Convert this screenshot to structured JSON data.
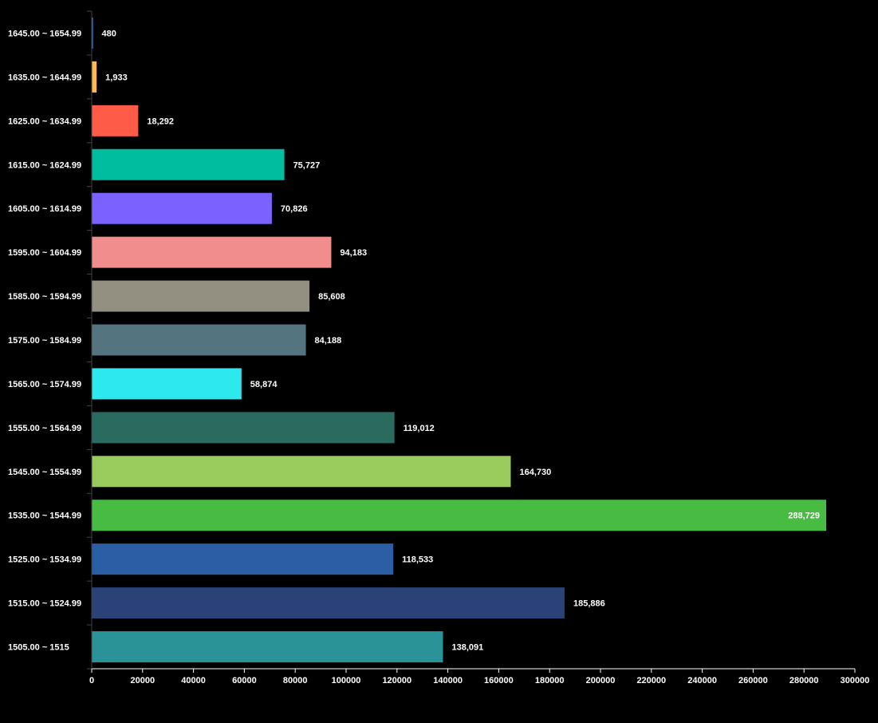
{
  "chart_data": {
    "type": "bar",
    "orientation": "horizontal",
    "title": "",
    "xlabel": "",
    "ylabel": "",
    "xlim": [
      0,
      300000
    ],
    "x_ticks": [
      0,
      20000,
      40000,
      60000,
      80000,
      100000,
      120000,
      140000,
      160000,
      180000,
      200000,
      220000,
      240000,
      260000,
      280000,
      300000
    ],
    "x_tick_labels": [
      "0",
      "20000",
      "40000",
      "60000",
      "80000",
      "100000",
      "120000",
      "140000",
      "160000",
      "180000",
      "200000",
      "220000",
      "240000",
      "260000",
      "280000",
      "300000"
    ],
    "grid": false,
    "legend": "none",
    "categories": [
      "1505.00 ~ 1515",
      "1515.00 ~ 1524.99",
      "1525.00 ~ 1534.99",
      "1535.00 ~ 1544.99",
      "1545.00 ~ 1554.99",
      "1555.00 ~ 1564.99",
      "1565.00 ~ 1574.99",
      "1575.00 ~ 1584.99",
      "1585.00 ~ 1594.99",
      "1595.00 ~ 1604.99",
      "1605.00 ~ 1614.99",
      "1615.00 ~ 1624.99",
      "1625.00 ~ 1634.99",
      "1635.00 ~ 1644.99",
      "1645.00 ~ 1654.99"
    ],
    "values": [
      138091,
      185886,
      118533,
      288729,
      164730,
      119012,
      58874,
      84188,
      85608,
      94183,
      70826,
      75727,
      18292,
      1933,
      480
    ],
    "value_labels": [
      "138,091",
      "185,886",
      "118,533",
      "288,729",
      "164,730",
      "119,012",
      "58,874",
      "84,188",
      "85,608",
      "94,183",
      "70,826",
      "75,727",
      "18,292",
      "1,933",
      "480"
    ],
    "colors": [
      "#2a9398",
      "#2b4279",
      "#2b5ea4",
      "#48bb42",
      "#99cb5d",
      "#2a6b60",
      "#2ee8ef",
      "#54757f",
      "#939082",
      "#f28d8d",
      "#7b61ff",
      "#00bda0",
      "#fe5b48",
      "#feba52",
      "#1f8fef"
    ]
  }
}
